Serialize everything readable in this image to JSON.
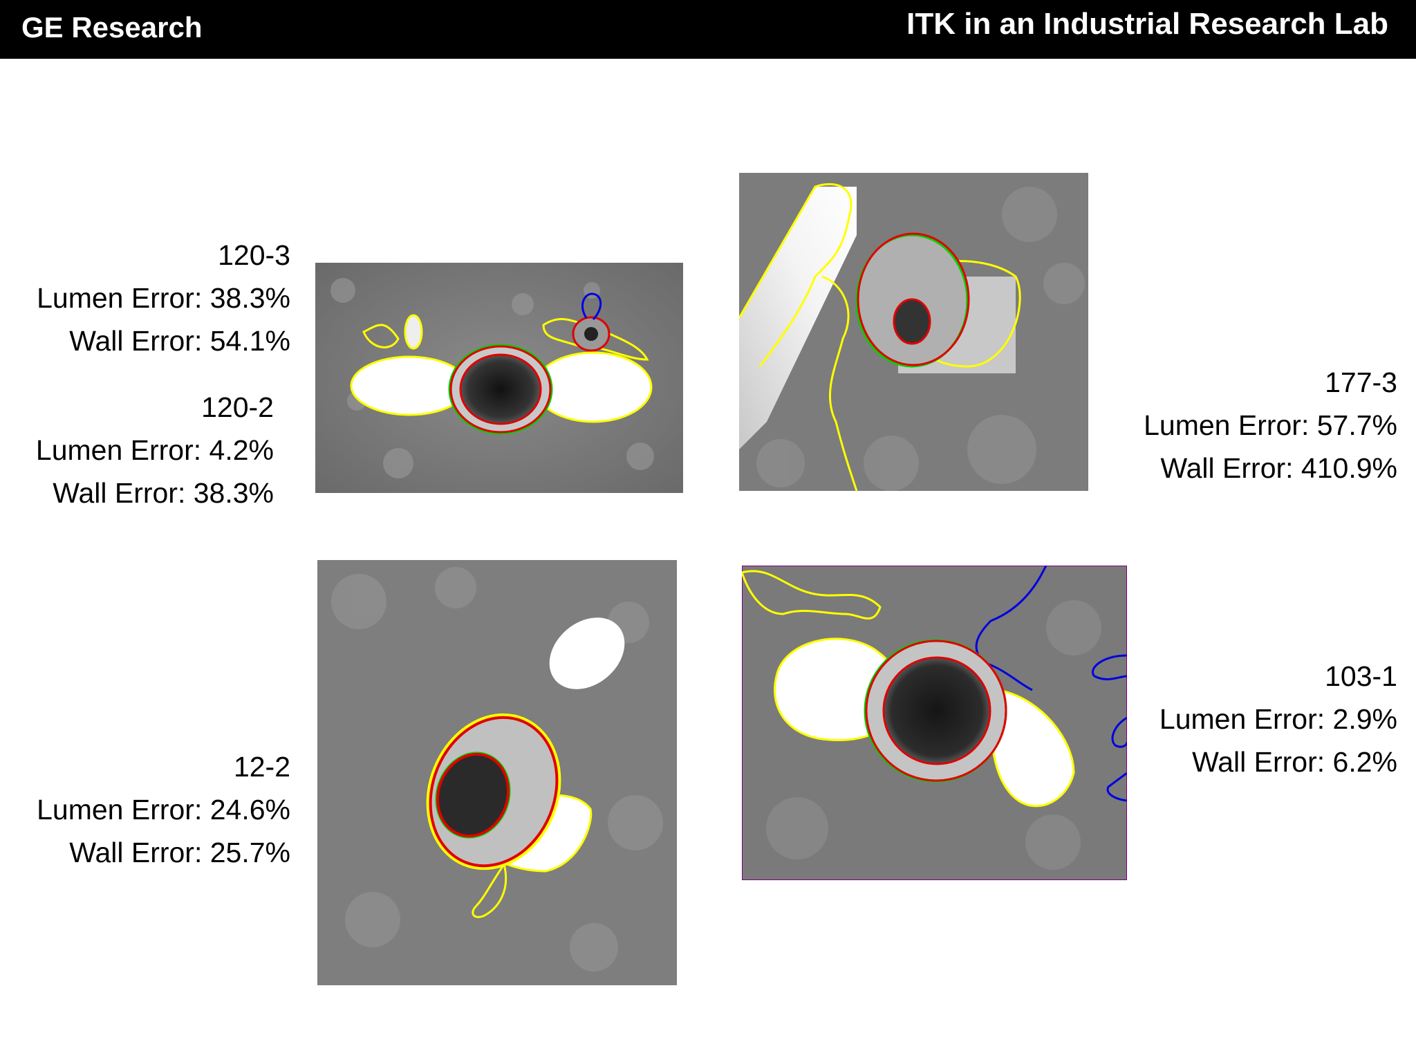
{
  "header": {
    "brand": "GE Research",
    "title": "ITK in an Industrial Research Lab"
  },
  "cases": [
    {
      "id": "120-3",
      "lumen": "Lumen Error: 38.3%",
      "wall": "Wall Error: 54.1%"
    },
    {
      "id": "120-2",
      "lumen": "Lumen Error: 4.2%",
      "wall": "Wall Error: 38.3%"
    },
    {
      "id": "177-3",
      "lumen": "Lumen Error: 57.7%",
      "wall": "Wall Error: 410.9%"
    },
    {
      "id": "12-2",
      "lumen": "Lumen Error: 24.6%",
      "wall": "Wall Error: 25.7%"
    },
    {
      "id": "103-1",
      "lumen": "Lumen Error: 2.9%",
      "wall": "Wall Error: 6.2%"
    }
  ],
  "contour_colors": {
    "yellow": "#ffff00",
    "green": "#00d000",
    "red": "#e00000",
    "blue": "#0000e0"
  }
}
